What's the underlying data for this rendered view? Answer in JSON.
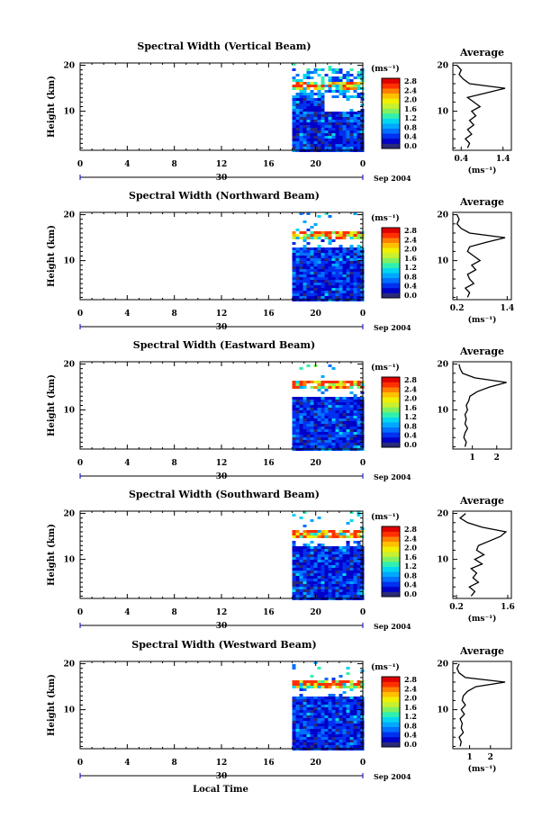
{
  "colorbar": {
    "unit": "(ms⁻¹)",
    "ticks": [
      "2.8",
      "2.4",
      "2.0",
      "1.6",
      "1.2",
      "0.8",
      "0.4",
      "0.0"
    ]
  },
  "chart_data": [
    {
      "type": "heatmap",
      "title": "Spectral Width (Vertical Beam)",
      "ylabel": "Height (km)",
      "x_ticks": [
        "0",
        "4",
        "8",
        "12",
        "16",
        "20",
        "0"
      ],
      "y_ticks": [
        "20",
        "10"
      ],
      "date_marker": "30",
      "date_suffix": "Sep 2004",
      "xlim": [
        0,
        24
      ],
      "ylim": [
        1.5,
        20.5
      ],
      "data_start_hour": 18,
      "tropopause_km": 16,
      "averages": {
        "title": "Average",
        "unit_label": "(ms⁻¹)",
        "x_ticks": [
          "0.4",
          "1.4"
        ],
        "xlim": [
          0.2,
          1.6
        ],
        "y_ticks": [
          "20",
          "10"
        ],
        "heights_km": [
          2,
          3,
          4,
          5,
          6,
          7,
          8,
          9,
          10,
          11,
          12,
          13,
          14,
          15,
          16,
          17,
          18,
          19,
          20
        ],
        "values": [
          0.55,
          0.6,
          0.5,
          0.65,
          0.55,
          0.7,
          0.6,
          0.75,
          0.65,
          0.85,
          0.7,
          0.55,
          1.0,
          1.45,
          0.6,
          0.45,
          0.35,
          0.4,
          0.3
        ]
      }
    },
    {
      "type": "heatmap",
      "title": "Spectral Width (Northward Beam)",
      "ylabel": "Height (km)",
      "x_ticks": [
        "0",
        "4",
        "8",
        "12",
        "16",
        "20",
        "0"
      ],
      "y_ticks": [
        "20",
        "10"
      ],
      "date_marker": "30",
      "date_suffix": "Sep 2004",
      "xlim": [
        0,
        24
      ],
      "ylim": [
        1.5,
        20.5
      ],
      "data_start_hour": 18,
      "tropopause_km": 16,
      "averages": {
        "title": "Average",
        "unit_label": "(ms⁻¹)",
        "x_ticks": [
          "0.2",
          "1.4"
        ],
        "xlim": [
          0.1,
          1.5
        ],
        "y_ticks": [
          "20",
          "10"
        ],
        "heights_km": [
          2,
          3,
          4,
          5,
          6,
          7,
          8,
          9,
          10,
          11,
          12,
          13,
          14,
          15,
          16,
          17,
          18,
          19,
          20
        ],
        "values": [
          0.45,
          0.5,
          0.4,
          0.6,
          0.5,
          0.45,
          0.65,
          0.55,
          0.75,
          0.6,
          0.45,
          0.5,
          0.9,
          1.35,
          0.5,
          0.3,
          0.2,
          0.25,
          0.2
        ]
      }
    },
    {
      "type": "heatmap",
      "title": "Spectral Width (Eastward Beam)",
      "ylabel": "Height (km)",
      "x_ticks": [
        "0",
        "4",
        "8",
        "12",
        "16",
        "20",
        "0"
      ],
      "y_ticks": [
        "20",
        "10"
      ],
      "date_marker": "30",
      "date_suffix": "Sep 2004",
      "xlim": [
        0,
        24
      ],
      "ylim": [
        1.5,
        20.5
      ],
      "data_start_hour": 18,
      "tropopause_km": 16,
      "averages": {
        "title": "Average",
        "unit_label": "",
        "x_ticks": [
          "1",
          "2"
        ],
        "xlim": [
          0.2,
          2.6
        ],
        "y_ticks": [
          "20",
          "10"
        ],
        "heights_km": [
          2,
          3,
          4,
          5,
          6,
          7,
          8,
          9,
          10,
          11,
          12,
          13,
          14,
          15,
          16,
          17,
          18,
          19,
          20
        ],
        "values": [
          0.7,
          0.75,
          0.65,
          0.7,
          0.8,
          0.7,
          0.75,
          0.7,
          0.8,
          0.75,
          0.85,
          0.9,
          1.2,
          1.7,
          2.4,
          1.1,
          0.6,
          0.5,
          0.45
        ]
      }
    },
    {
      "type": "heatmap",
      "title": "Spectral Width (Southward Beam)",
      "ylabel": "Height (km)",
      "x_ticks": [
        "0",
        "4",
        "8",
        "12",
        "16",
        "20",
        "0"
      ],
      "y_ticks": [
        "20",
        "10"
      ],
      "date_marker": "30",
      "date_suffix": "Sep 2004",
      "xlim": [
        0,
        24
      ],
      "ylim": [
        1.5,
        20.5
      ],
      "data_start_hour": 18,
      "tropopause_km": 16,
      "averages": {
        "title": "Average",
        "unit_label": "(ms⁻¹)",
        "x_ticks": [
          "0.2",
          "1.6"
        ],
        "xlim": [
          0.1,
          1.7
        ],
        "y_ticks": [
          "20",
          "10"
        ],
        "heights_km": [
          2,
          3,
          4,
          5,
          6,
          7,
          8,
          9,
          10,
          11,
          12,
          13,
          14,
          15,
          16,
          17,
          18,
          19,
          20
        ],
        "values": [
          0.6,
          0.7,
          0.55,
          0.8,
          0.65,
          0.75,
          0.6,
          0.9,
          0.7,
          0.95,
          0.75,
          0.8,
          1.1,
          1.4,
          1.55,
          0.9,
          0.5,
          0.3,
          0.45
        ]
      }
    },
    {
      "type": "heatmap",
      "title": "Spectral Width (Westward Beam)",
      "ylabel": "Height (km)",
      "x_ticks": [
        "0",
        "4",
        "8",
        "12",
        "16",
        "20",
        "0"
      ],
      "y_ticks": [
        "20",
        "10"
      ],
      "date_marker": "30",
      "date_suffix": "Sep 2004",
      "xlim": [
        0,
        24
      ],
      "ylim": [
        1.5,
        20.5
      ],
      "data_start_hour": 18,
      "tropopause_km": 16,
      "averages": {
        "title": "Average",
        "unit_label": "(ms⁻¹)",
        "x_ticks": [
          "1",
          "2"
        ],
        "xlim": [
          0.2,
          3.0
        ],
        "y_ticks": [
          "20",
          "10"
        ],
        "heights_km": [
          2,
          3,
          4,
          5,
          6,
          7,
          8,
          9,
          10,
          11,
          12,
          13,
          14,
          15,
          16,
          17,
          18,
          19,
          20
        ],
        "values": [
          0.55,
          0.6,
          0.5,
          0.7,
          0.6,
          0.65,
          0.55,
          0.75,
          0.6,
          0.8,
          0.65,
          0.7,
          0.9,
          1.3,
          2.7,
          0.8,
          0.5,
          0.4,
          0.5
        ]
      }
    }
  ],
  "footer": {
    "xlabel": "Local Time"
  }
}
